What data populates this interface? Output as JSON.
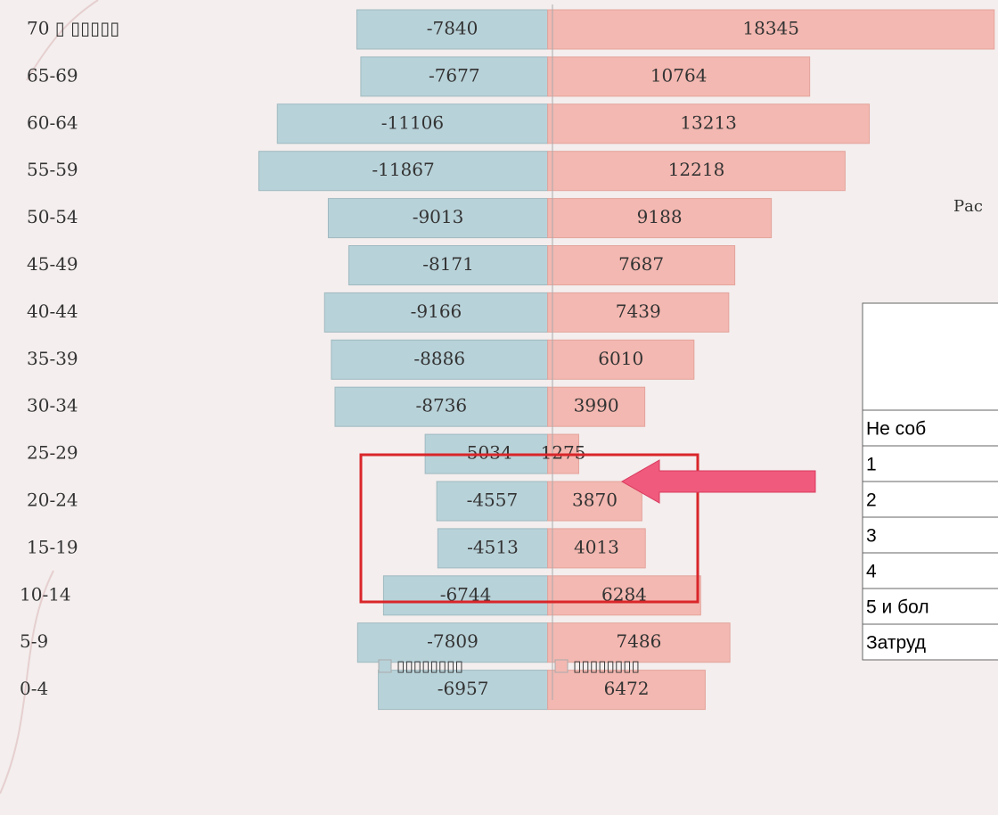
{
  "chart_data": {
    "type": "bar",
    "orientation": "horizontal",
    "categories": [
      "70 ▯ ▯▯▯▯▯",
      "65-69",
      "60-64",
      "55-59",
      "50-54",
      "45-49",
      "40-44",
      "35-39",
      "30-34",
      "25-29",
      "20-24",
      "15-19",
      "10-14",
      "5-9",
      "0-4"
    ],
    "series": [
      {
        "name": "▯▯▯▯▯▯▯▯",
        "color": "#b8d2d9",
        "values": [
          -7840,
          -7677,
          -11106,
          -11867,
          -9013,
          -8171,
          -9166,
          -8886,
          -8736,
          -5034,
          -4557,
          -4513,
          -6744,
          -7809,
          -6957
        ]
      },
      {
        "name": "▯▯▯▯▯▯▯▯",
        "color": "#f3b8b1",
        "values": [
          18345,
          10764,
          13213,
          12218,
          9188,
          7687,
          7439,
          6010,
          3990,
          1275,
          3870,
          4013,
          6284,
          7486,
          6472
        ]
      }
    ],
    "xlim": [
      -22500,
      18500
    ]
  },
  "side_text": "Рас",
  "table": {
    "rows": [
      [
        "Не соб"
      ],
      [
        "1"
      ],
      [
        "2"
      ],
      [
        "3"
      ],
      [
        "4"
      ],
      [
        "5 и бол"
      ],
      [
        "Затруд"
      ]
    ]
  }
}
